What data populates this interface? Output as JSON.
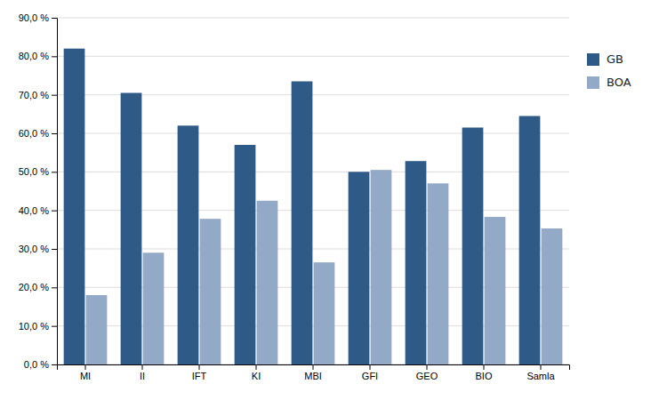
{
  "chart_data": {
    "type": "bar",
    "categories": [
      "MI",
      "II",
      "IFT",
      "KI",
      "MBI",
      "GFI",
      "GEO",
      "BIO",
      "Samla"
    ],
    "series": [
      {
        "name": "GB",
        "color": "#2E5A87",
        "values": [
          0.82,
          0.705,
          0.62,
          0.57,
          0.735,
          0.5,
          0.528,
          0.615,
          0.645
        ]
      },
      {
        "name": "BOA",
        "color": "#92A9C8",
        "values": [
          0.18,
          0.29,
          0.378,
          0.425,
          0.265,
          0.505,
          0.47,
          0.383,
          0.353
        ]
      }
    ],
    "ylim": [
      0,
      0.9
    ],
    "yticks": [
      {
        "value": 0,
        "label": "0,0 %"
      },
      {
        "value": 0.1,
        "label": "10,0 %"
      },
      {
        "value": 0.2,
        "label": "20,0 %"
      },
      {
        "value": 0.3,
        "label": "30,0 %"
      },
      {
        "value": 0.4,
        "label": "40,0 %"
      },
      {
        "value": 0.5,
        "label": "50,0 %"
      },
      {
        "value": 0.6,
        "label": "60,0 %"
      },
      {
        "value": 0.7,
        "label": "70,0 %"
      },
      {
        "value": 0.8,
        "label": "80,0 %"
      },
      {
        "value": 0.9,
        "label": "90,0 %"
      }
    ],
    "grid": true,
    "legend": "right"
  }
}
